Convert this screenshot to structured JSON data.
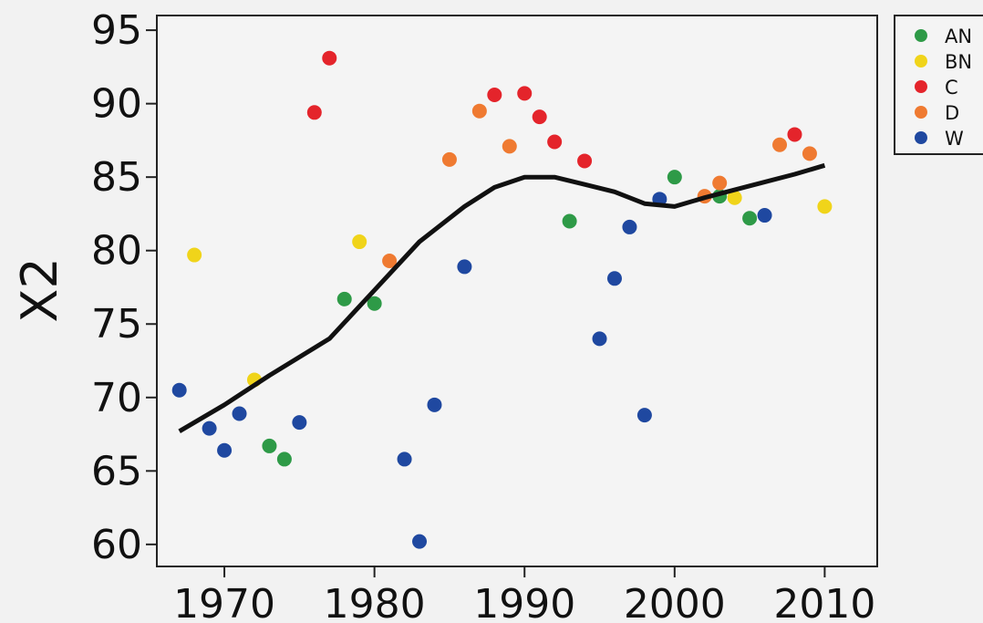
{
  "chart_data": {
    "type": "scatter",
    "title": "",
    "xlabel": "",
    "ylabel": "X2",
    "xlim": [
      1965.5,
      2013.5
    ],
    "ylim": [
      58.5,
      96
    ],
    "xticks": [
      1970,
      1980,
      1990,
      2000,
      2010
    ],
    "yticks": [
      60,
      65,
      70,
      75,
      80,
      85,
      90,
      95
    ],
    "grid": false,
    "legend": "top-right-outside",
    "series": [
      {
        "name": "AN",
        "color": "#2e9a47",
        "points": [
          [
            1973,
            66.7
          ],
          [
            1974,
            65.8
          ],
          [
            1978,
            76.7
          ],
          [
            1980,
            76.4
          ],
          [
            1993,
            82.0
          ],
          [
            2000,
            85.0
          ],
          [
            2003,
            83.7
          ],
          [
            2005,
            82.2
          ]
        ]
      },
      {
        "name": "BN",
        "color": "#f0d41a",
        "points": [
          [
            1968,
            79.7
          ],
          [
            1972,
            71.2
          ],
          [
            1979,
            80.6
          ],
          [
            2004,
            83.6
          ],
          [
            2010,
            83.0
          ]
        ]
      },
      {
        "name": "C",
        "color": "#e4242b",
        "points": [
          [
            1976,
            89.4
          ],
          [
            1977,
            93.1
          ],
          [
            1988,
            90.6
          ],
          [
            1990,
            90.7
          ],
          [
            1991,
            89.1
          ],
          [
            1992,
            87.4
          ],
          [
            1994,
            86.1
          ],
          [
            2008,
            87.9
          ]
        ]
      },
      {
        "name": "D",
        "color": "#ef7a31",
        "points": [
          [
            1981,
            79.3
          ],
          [
            1985,
            86.2
          ],
          [
            1987,
            89.5
          ],
          [
            1989,
            87.1
          ],
          [
            2002,
            83.7
          ],
          [
            2003,
            84.6
          ],
          [
            2007,
            87.2
          ],
          [
            2009,
            86.6
          ]
        ]
      },
      {
        "name": "W",
        "color": "#1f48a0",
        "points": [
          [
            1967,
            70.5
          ],
          [
            1969,
            67.9
          ],
          [
            1970,
            66.4
          ],
          [
            1971,
            68.9
          ],
          [
            1975,
            68.3
          ],
          [
            1982,
            65.8
          ],
          [
            1983,
            60.2
          ],
          [
            1984,
            69.5
          ],
          [
            1986,
            78.9
          ],
          [
            1995,
            74.0
          ],
          [
            1996,
            78.1
          ],
          [
            1997,
            81.6
          ],
          [
            1998,
            68.8
          ],
          [
            1999,
            83.5
          ],
          [
            2006,
            82.4
          ]
        ]
      }
    ],
    "trend": {
      "color": "#111111",
      "points": [
        [
          1967,
          67.7
        ],
        [
          1970,
          69.5
        ],
        [
          1973,
          71.5
        ],
        [
          1977,
          74.0
        ],
        [
          1980,
          77.3
        ],
        [
          1983,
          80.6
        ],
        [
          1986,
          83.0
        ],
        [
          1988,
          84.3
        ],
        [
          1990,
          85.0
        ],
        [
          1992,
          85.0
        ],
        [
          1994,
          84.5
        ],
        [
          1996,
          84.0
        ],
        [
          1998,
          83.2
        ],
        [
          2000,
          83.0
        ],
        [
          2002,
          83.6
        ],
        [
          2005,
          84.4
        ],
        [
          2008,
          85.2
        ],
        [
          2010,
          85.8
        ]
      ]
    }
  }
}
